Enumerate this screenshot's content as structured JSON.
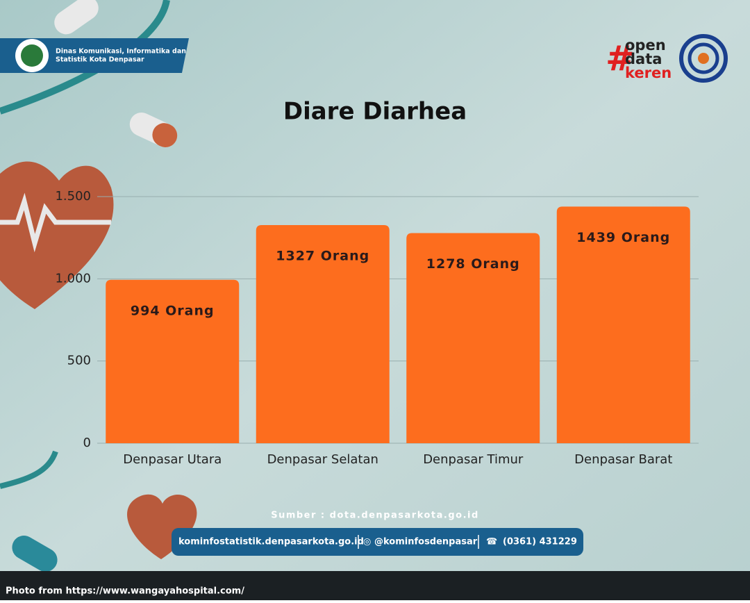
{
  "header": {
    "agency": [
      "Dinas Komunikasi, Informatika dan",
      "Statistik Kota Denpasar"
    ],
    "badge": [
      "open",
      "data",
      "keren"
    ]
  },
  "chart_data": {
    "type": "bar",
    "title": "Diare Diarhea",
    "categories": [
      "Denpasar Utara",
      "Denpasar Selatan",
      "Denpasar Timur",
      "Denpasar Barat"
    ],
    "values": [
      994,
      1327,
      1278,
      1439
    ],
    "value_labels": [
      "994 Orang",
      "1327 Orang",
      "1278 Orang",
      "1439 Orang"
    ],
    "color": "#fd6d1e",
    "ylim": [
      0,
      1500
    ],
    "yticks": [
      0,
      500,
      {
        "value": 1000,
        "label": "1.000"
      },
      {
        "value": 1500,
        "label": "1.500"
      }
    ],
    "grid": true
  },
  "source": "Sumber : dota.denpasarkota.go.id",
  "contacts": [
    "kominfostatistik.denpasarkota.go.id",
    "@kominfosdenpasar",
    "(0361) 431229"
  ],
  "photo_credit": "Photo from https://www.wangayahospital.com/"
}
